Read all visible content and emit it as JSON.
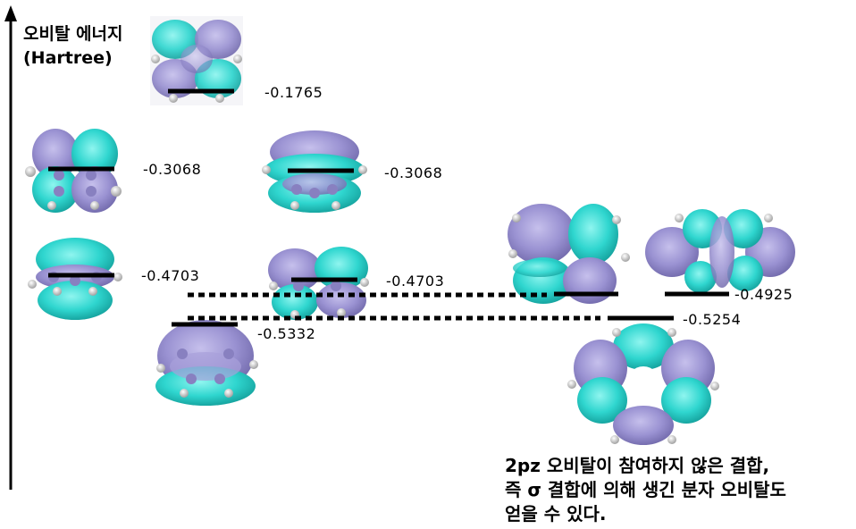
{
  "axis": {
    "title_line1": "오비탈 에너지",
    "title_line2": "(Hartree)"
  },
  "levels": [
    {
      "value": "-0.1765"
    },
    {
      "value": "-0.3068"
    },
    {
      "value": "-0.3068"
    },
    {
      "value": "-0.4703"
    },
    {
      "value": "-0.4703"
    },
    {
      "value": "-0.5332"
    },
    {
      "value": "-0.4925"
    },
    {
      "value": "-0.5254"
    }
  ],
  "caption": {
    "line1": "2pz 오비탈이 참여하지 않은 결합,",
    "line2": "즉 σ 결합에 의해 생긴 분자 오비탈도",
    "line3": "얻을 수 있다."
  },
  "colors": {
    "lobe_cyan": "#27cfc9",
    "lobe_purple": "#9088c8",
    "level_bar": "#000000"
  }
}
